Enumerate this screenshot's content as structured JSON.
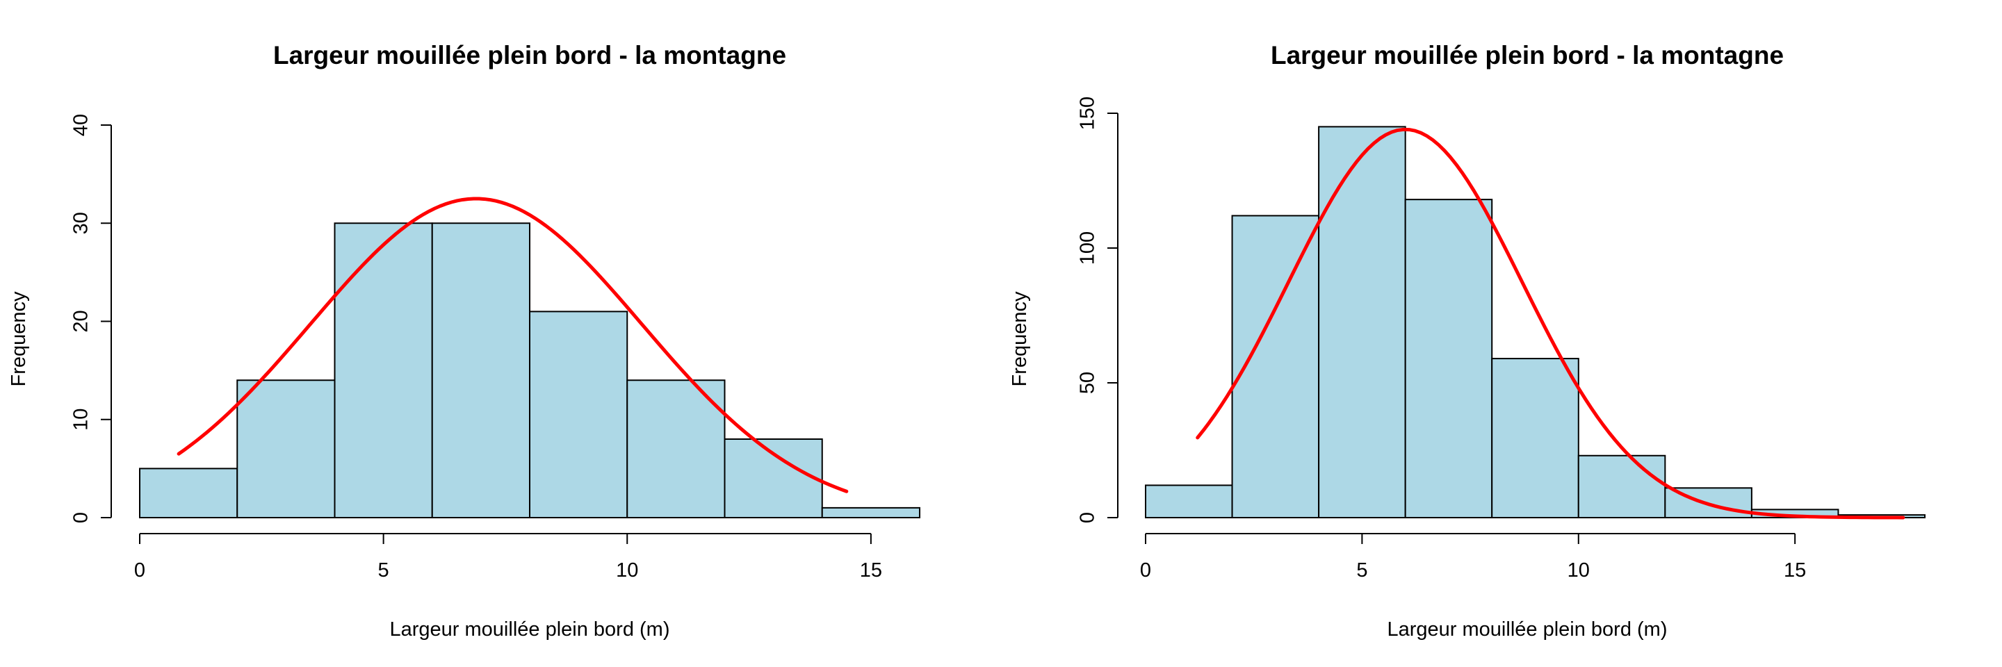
{
  "chart_data": [
    {
      "type": "bar",
      "title": "Largeur mouillée plein bord - la montagne",
      "xlabel": "Largeur mouillée plein bord (m)",
      "ylabel": "Frequency",
      "bins": [
        [
          0,
          2
        ],
        [
          2,
          4
        ],
        [
          4,
          6
        ],
        [
          6,
          8
        ],
        [
          8,
          10
        ],
        [
          10,
          12
        ],
        [
          12,
          14
        ],
        [
          14,
          16
        ]
      ],
      "values": [
        5,
        14,
        30,
        30,
        21,
        14,
        8,
        1
      ],
      "xlim": [
        0,
        16
      ],
      "ylim": [
        0,
        40
      ],
      "xticks": [
        0,
        5,
        10,
        15
      ],
      "yticks": [
        0,
        10,
        20,
        30,
        40
      ],
      "bar_color": "#add8e6",
      "curve_color": "#ff0000",
      "curve": {
        "type": "normal",
        "peak_x": 6.9,
        "peak_y": 32.5,
        "sd": 3.4,
        "x_start": 0.8,
        "x_end": 14.5
      }
    },
    {
      "type": "bar",
      "title": "Largeur mouillée plein bord - la montagne",
      "xlabel": "Largeur mouillée plein bord (m)",
      "ylabel": "Frequency",
      "bins": [
        [
          0,
          2
        ],
        [
          2,
          4
        ],
        [
          4,
          6
        ],
        [
          6,
          8
        ],
        [
          8,
          10
        ],
        [
          10,
          12
        ],
        [
          12,
          14
        ],
        [
          14,
          16
        ],
        [
          16,
          18
        ]
      ],
      "values": [
        12,
        112,
        145,
        118,
        59,
        23,
        11,
        3,
        1
      ],
      "xlim": [
        0,
        18
      ],
      "ylim": [
        0,
        150
      ],
      "xticks": [
        0,
        5,
        10,
        15
      ],
      "yticks": [
        0,
        50,
        100,
        150
      ],
      "bar_color": "#add8e6",
      "curve_color": "#ff0000",
      "curve": {
        "type": "normal",
        "peak_x": 6.0,
        "peak_y": 144,
        "sd": 2.7,
        "x_start": 1.2,
        "x_end": 17.5
      }
    }
  ]
}
